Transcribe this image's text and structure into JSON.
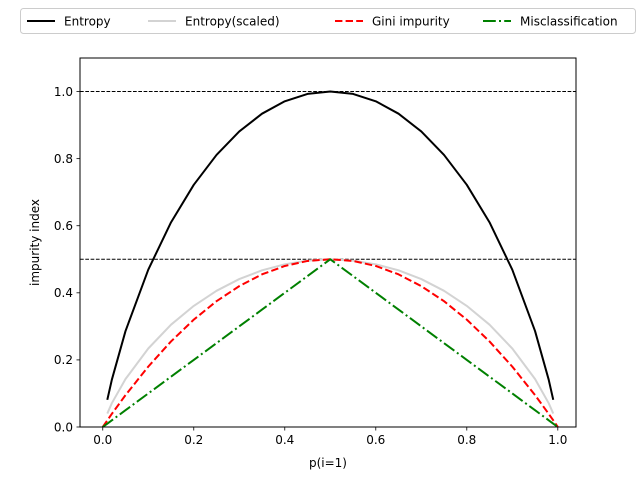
{
  "chart_data": {
    "type": "line",
    "title": "",
    "xlabel": "p(i=1)",
    "ylabel": "impurity index",
    "xlim": [
      -0.05,
      1.04
    ],
    "ylim": [
      0.0,
      1.1
    ],
    "xticks": [
      0.0,
      0.2,
      0.4,
      0.6,
      0.8,
      1.0
    ],
    "xtick_labels": [
      "0.0",
      "0.2",
      "0.4",
      "0.6",
      "0.8",
      "1.0"
    ],
    "yticks": [
      0.0,
      0.2,
      0.4,
      0.6,
      0.8,
      1.0
    ],
    "ytick_labels": [
      "0.0",
      "0.2",
      "0.4",
      "0.6",
      "0.8",
      "1.0"
    ],
    "reference_lines": [
      0.5,
      1.0
    ],
    "legend": "top, above axes, 4 columns",
    "grid": false,
    "x": [
      0.01,
      0.02,
      0.05,
      0.1,
      0.15,
      0.2,
      0.25,
      0.3,
      0.35,
      0.4,
      0.45,
      0.5,
      0.55,
      0.6,
      0.65,
      0.7,
      0.75,
      0.8,
      0.85,
      0.9,
      0.95,
      0.98,
      0.99
    ],
    "series": [
      {
        "name": "Entropy",
        "color": "#000000",
        "dash": "solid",
        "x_start": 0.01,
        "values": [
          0.081,
          0.141,
          0.286,
          0.469,
          0.61,
          0.722,
          0.811,
          0.881,
          0.934,
          0.971,
          0.993,
          1.0,
          0.993,
          0.971,
          0.934,
          0.881,
          0.811,
          0.722,
          0.61,
          0.469,
          0.286,
          0.141,
          0.081
        ]
      },
      {
        "name": "Entropy(scaled)",
        "color": "#d3d3d3",
        "dash": "solid",
        "x_start": 0.01,
        "values": [
          0.04,
          0.071,
          0.143,
          0.234,
          0.305,
          0.361,
          0.406,
          0.441,
          0.467,
          0.485,
          0.496,
          0.5,
          0.496,
          0.485,
          0.467,
          0.441,
          0.406,
          0.361,
          0.305,
          0.234,
          0.143,
          0.071,
          0.04
        ]
      },
      {
        "name": "Gini impurity",
        "color": "#ff0000",
        "dash": "dashed",
        "x_start": 0.0,
        "values": [
          0.0198,
          0.0392,
          0.095,
          0.18,
          0.255,
          0.32,
          0.375,
          0.42,
          0.455,
          0.48,
          0.495,
          0.5,
          0.495,
          0.48,
          0.455,
          0.42,
          0.375,
          0.32,
          0.255,
          0.18,
          0.095,
          0.0392,
          0.0198
        ]
      },
      {
        "name": "Misclassification",
        "color": "#008000",
        "dash": "dashdot",
        "x_start": 0.0,
        "values": [
          0.01,
          0.02,
          0.05,
          0.1,
          0.15,
          0.2,
          0.25,
          0.3,
          0.35,
          0.4,
          0.45,
          0.5,
          0.45,
          0.4,
          0.35,
          0.3,
          0.25,
          0.2,
          0.15,
          0.1,
          0.05,
          0.02,
          0.01
        ]
      }
    ]
  }
}
